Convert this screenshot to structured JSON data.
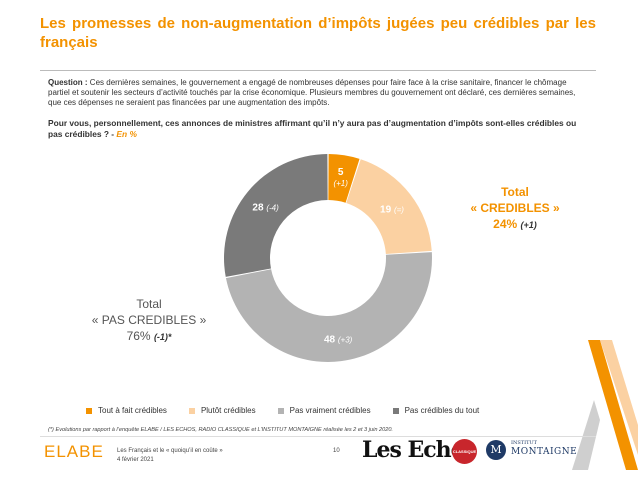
{
  "slide": {
    "title": "Les promesses de non-augmentation d’impôts jugées peu crédibles par les français",
    "question_label": "Question :",
    "question_text": "Ces dernières semaines, le gouvernement a engagé de nombreuses dépenses pour faire face à la crise sanitaire, financer le chômage partiel et soutenir les secteurs d’activité touchés par la crise économique. Plusieurs membres du gouvernement ont déclaré, ces dernières semaines, que ces dépenses ne seraient pas financées par une augmentation des impôts.",
    "subquestion": "Pour vous, personnellement, ces annonces de ministres affirmant qu’il n’y aura pas d’augmentation d’impôts sont-elles crédibles ou pas crédibles ? -",
    "subquestion_unit": "En %"
  },
  "totals": {
    "credibles": {
      "line1": "Total",
      "line2": "« CREDIBLES »",
      "value": "24%",
      "delta": "(+1)"
    },
    "pas_credibles": {
      "line1": "Total",
      "line2": "« PAS CREDIBLES »",
      "value": "76%",
      "delta": "(-1)*"
    }
  },
  "chart_data": {
    "type": "pie",
    "donut": true,
    "categories": [
      "Tout à fait crédibles",
      "Plutôt crédibles",
      "Pas vraiment crédibles",
      "Pas crédibles du tout"
    ],
    "values": [
      5,
      19,
      48,
      28
    ],
    "value_labels": [
      "5",
      "19",
      "48",
      "28"
    ],
    "deltas": [
      "(+1)",
      "(=)",
      "(+3)",
      "(-4)"
    ],
    "colors": [
      "#f39200",
      "#fbd1a2",
      "#b3b3b3",
      "#7a7a7a"
    ],
    "label_colors": [
      "#ffffff",
      "#ffffff",
      "#ffffff",
      "#ffffff"
    ],
    "legend_position": "bottom"
  },
  "footer": {
    "footnote": "(*) Evolutions par rapport à l’enquête ELABE / LES ECHOS, RADIO CLASSIQUE et L’INSTITUT MONTAIGNE réalisée les 2 et 3 juin 2020.",
    "doc_title": "Les Français et le « quoiqu’il en coûte »",
    "date": "4 février 2021",
    "page": "10",
    "elabe_logo": "ELABE",
    "lesechos_logo": "Les Echos",
    "classique_logo": "CLASSIQUE",
    "institut_line1": "INSTITUT",
    "institut_line2": "MONTAIGNE",
    "institut_mark": "M"
  }
}
